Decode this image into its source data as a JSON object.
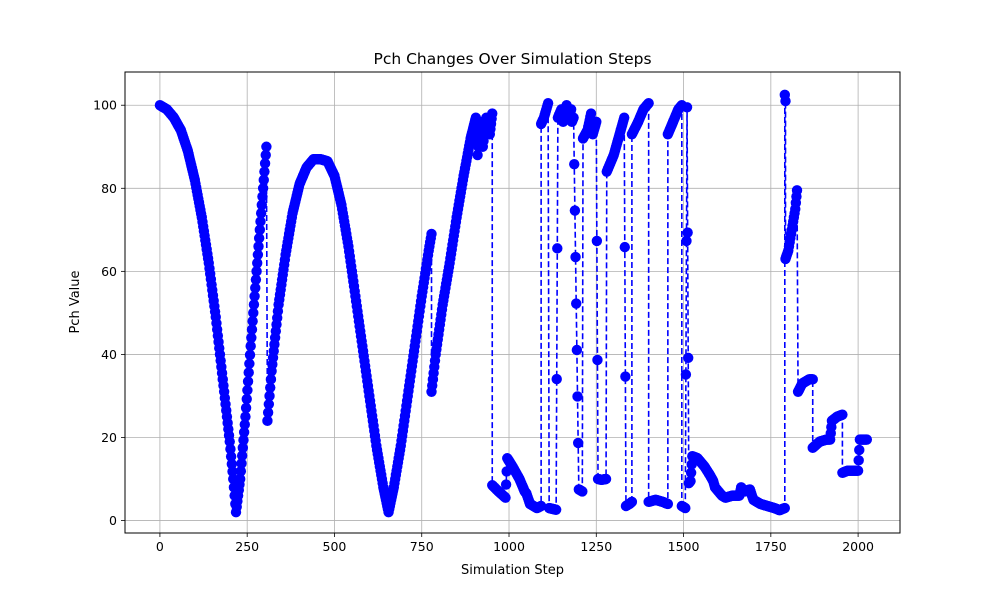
{
  "chart_data": {
    "type": "scatter",
    "title": "Pch Changes Over Simulation Steps",
    "xlabel": "Simulation Step",
    "ylabel": "Pch Value",
    "xlim": [
      -100,
      2120
    ],
    "ylim": [
      -3,
      108
    ],
    "xticks": [
      0,
      250,
      500,
      750,
      1000,
      1250,
      1500,
      1750,
      2000
    ],
    "yticks": [
      0,
      20,
      40,
      60,
      80,
      100
    ],
    "grid": true,
    "marker_color": "#0000ff",
    "line_color": "#0000ff",
    "line_style": "dashed",
    "anchors": [
      [
        0,
        100
      ],
      [
        20,
        99
      ],
      [
        40,
        97
      ],
      [
        60,
        94
      ],
      [
        80,
        89
      ],
      [
        100,
        82
      ],
      [
        120,
        73
      ],
      [
        140,
        62
      ],
      [
        160,
        49
      ],
      [
        180,
        34
      ],
      [
        200,
        19
      ],
      [
        210,
        10
      ],
      [
        218,
        2
      ],
      [
        230,
        10
      ],
      [
        245,
        25
      ],
      [
        260,
        42
      ],
      [
        275,
        58
      ],
      [
        290,
        74
      ],
      [
        305,
        90
      ],
      [
        308,
        24
      ],
      [
        320,
        36
      ],
      [
        340,
        52
      ],
      [
        360,
        64
      ],
      [
        380,
        74
      ],
      [
        400,
        81
      ],
      [
        420,
        85
      ],
      [
        440,
        87
      ],
      [
        460,
        87
      ],
      [
        480,
        86.5
      ],
      [
        500,
        83
      ],
      [
        520,
        76
      ],
      [
        540,
        66
      ],
      [
        560,
        54
      ],
      [
        580,
        42
      ],
      [
        600,
        30
      ],
      [
        620,
        18
      ],
      [
        640,
        8
      ],
      [
        655,
        2
      ],
      [
        670,
        8
      ],
      [
        690,
        18
      ],
      [
        710,
        30
      ],
      [
        730,
        42
      ],
      [
        750,
        54
      ],
      [
        770,
        65
      ],
      [
        778,
        69
      ],
      [
        778,
        31
      ],
      [
        790,
        40
      ],
      [
        810,
        52
      ],
      [
        830,
        62
      ],
      [
        850,
        73
      ],
      [
        870,
        83
      ],
      [
        890,
        92
      ],
      [
        905,
        97
      ],
      [
        910,
        88
      ],
      [
        918,
        96
      ],
      [
        925,
        90
      ],
      [
        935,
        97
      ],
      [
        945,
        93
      ],
      [
        952,
        98
      ],
      [
        952,
        8.5
      ],
      [
        970,
        7
      ],
      [
        990,
        5.5
      ],
      [
        995,
        15
      ],
      [
        1010,
        13
      ],
      [
        1030,
        10
      ],
      [
        1045,
        7
      ],
      [
        1050,
        6.5
      ],
      [
        1060,
        4
      ],
      [
        1080,
        3
      ],
      [
        1092,
        3.5
      ],
      [
        1092,
        95.5
      ],
      [
        1100,
        97
      ],
      [
        1112,
        100.5
      ],
      [
        1115,
        3
      ],
      [
        1125,
        2.8
      ],
      [
        1135,
        2.6
      ],
      [
        1140,
        97
      ],
      [
        1150,
        99
      ],
      [
        1155,
        96
      ],
      [
        1165,
        100
      ],
      [
        1172,
        97
      ],
      [
        1178,
        99
      ],
      [
        1180,
        96
      ],
      [
        1185,
        97
      ],
      [
        1200,
        7.5
      ],
      [
        1210,
        7
      ],
      [
        1212,
        92
      ],
      [
        1225,
        94
      ],
      [
        1235,
        98
      ],
      [
        1240,
        93
      ],
      [
        1250,
        96
      ],
      [
        1255,
        10
      ],
      [
        1265,
        9.8
      ],
      [
        1278,
        10
      ],
      [
        1280,
        84
      ],
      [
        1300,
        88
      ],
      [
        1320,
        94
      ],
      [
        1330,
        97
      ],
      [
        1335,
        3.5
      ],
      [
        1345,
        4
      ],
      [
        1352,
        4.5
      ],
      [
        1352,
        93
      ],
      [
        1370,
        96
      ],
      [
        1385,
        99
      ],
      [
        1400,
        100.5
      ],
      [
        1400,
        4.5
      ],
      [
        1420,
        5
      ],
      [
        1440,
        4.5
      ],
      [
        1455,
        4
      ],
      [
        1455,
        93
      ],
      [
        1470,
        96
      ],
      [
        1485,
        99
      ],
      [
        1495,
        100
      ],
      [
        1495,
        3.5
      ],
      [
        1505,
        3
      ],
      [
        1510,
        99.5
      ],
      [
        1515,
        9
      ],
      [
        1520,
        9.5
      ],
      [
        1525,
        15.5
      ],
      [
        1540,
        15
      ],
      [
        1560,
        13
      ],
      [
        1575,
        11
      ],
      [
        1585,
        9.5
      ],
      [
        1590,
        8
      ],
      [
        1600,
        7
      ],
      [
        1610,
        6
      ],
      [
        1620,
        5.5
      ],
      [
        1640,
        6
      ],
      [
        1660,
        6
      ],
      [
        1665,
        8
      ],
      [
        1675,
        7
      ],
      [
        1690,
        7.5
      ],
      [
        1700,
        5
      ],
      [
        1720,
        4
      ],
      [
        1740,
        3.5
      ],
      [
        1760,
        3
      ],
      [
        1775,
        2.5
      ],
      [
        1790,
        3
      ],
      [
        1790,
        102.5
      ],
      [
        1792,
        101
      ],
      [
        1792,
        63
      ],
      [
        1800,
        65
      ],
      [
        1810,
        70
      ],
      [
        1820,
        75
      ],
      [
        1825,
        79.5
      ],
      [
        1828,
        31
      ],
      [
        1840,
        33
      ],
      [
        1860,
        34
      ],
      [
        1870,
        34
      ],
      [
        1870,
        17.5
      ],
      [
        1890,
        19
      ],
      [
        1910,
        19.5
      ],
      [
        1920,
        19.5
      ],
      [
        1925,
        24
      ],
      [
        1940,
        25
      ],
      [
        1955,
        25.5
      ],
      [
        1955,
        11.5
      ],
      [
        1970,
        12
      ],
      [
        1990,
        12
      ],
      [
        2000,
        12
      ],
      [
        2005,
        19.5
      ],
      [
        2015,
        19.5
      ],
      [
        2025,
        19.5
      ]
    ]
  }
}
